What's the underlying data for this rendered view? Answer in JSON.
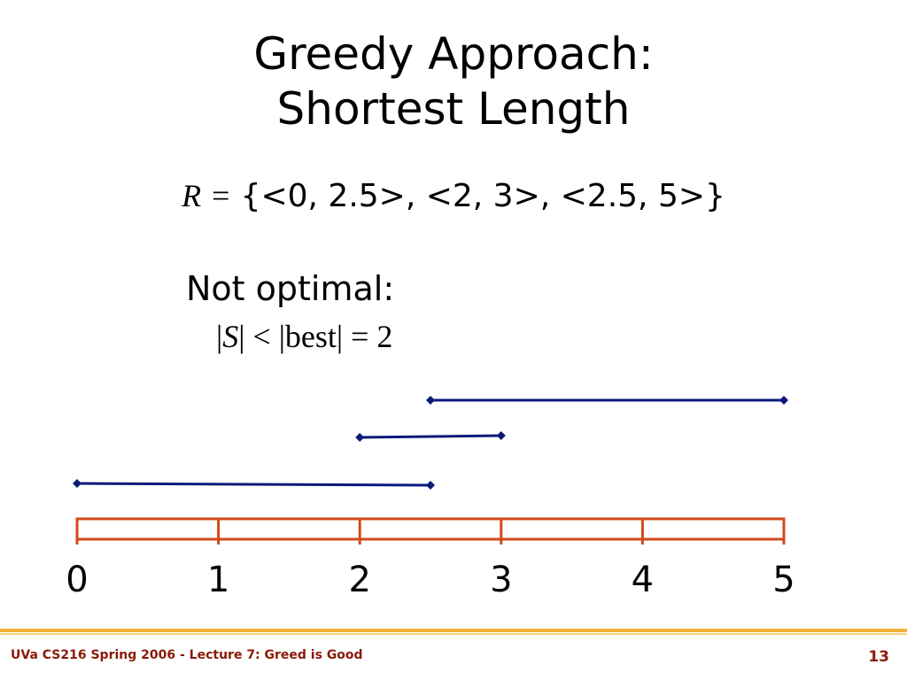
{
  "slide": {
    "title_line1": "Greedy Approach:",
    "title_line2": "Shortest Length",
    "set_variable": "R",
    "set_equals": "=",
    "set_value": "{<0, 2.5>, <2, 3>, <2.5, 5>}",
    "note_heading": "Not optimal:",
    "note_formula": {
      "bar_open": "|",
      "var": "S",
      "rest": "| < |best| = 2"
    }
  },
  "diagram": {
    "axis_min": 0,
    "axis_max": 5,
    "tick_labels": [
      "0",
      "1",
      "2",
      "3",
      "4",
      "5"
    ],
    "intervals": [
      {
        "start": 0,
        "end": 2.5
      },
      {
        "start": 2,
        "end": 3
      },
      {
        "start": 2.5,
        "end": 5
      }
    ],
    "colors": {
      "axis": "#d24a1a",
      "interval": "#0a1a7a"
    }
  },
  "footer": {
    "course_text": "UVa CS216 Spring 2006 - Lecture 7: Greed is Good",
    "page_number": "13",
    "colors": {
      "rule": "#f2b13a",
      "text": "#8a1a06"
    }
  }
}
